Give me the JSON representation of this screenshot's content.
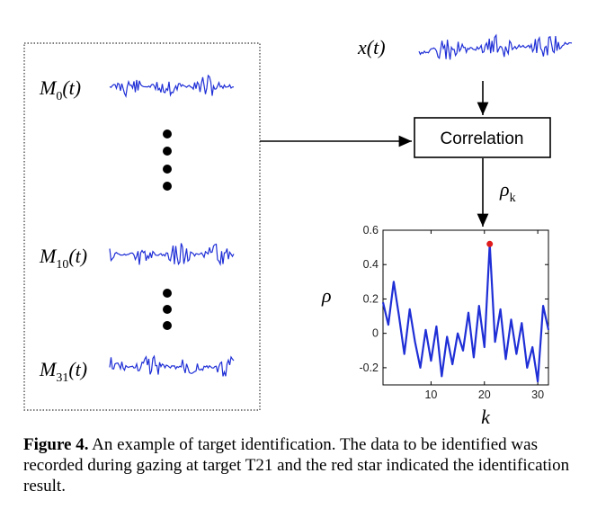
{
  "labels": {
    "x": "x(t)",
    "m0_main": "M",
    "m0_sub": "0",
    "m0_arg": "(t)",
    "m10_main": "M",
    "m10_sub": "10",
    "m10_arg": "(t)",
    "m31_main": "M",
    "m31_sub": "31",
    "m31_arg": "(t)",
    "rho_k_main": "ρ",
    "rho_k_sub": "k",
    "rho_axis": "ρ",
    "k_axis": "k",
    "correlation": "Correlation"
  },
  "caption": {
    "label": "Figure 4.",
    "text": " An example of target identification. The data to be identified was recorded during gazing at target T21 and the red star indicated the identification result."
  },
  "colors": {
    "signal": "#1f2fd6",
    "highlight": "#e01b1b"
  },
  "chart_data": {
    "type": "line",
    "x": [
      1,
      2,
      3,
      4,
      5,
      6,
      7,
      8,
      9,
      10,
      11,
      12,
      13,
      14,
      15,
      16,
      17,
      18,
      19,
      20,
      21,
      22,
      23,
      24,
      25,
      26,
      27,
      28,
      29,
      30,
      31,
      32
    ],
    "series": [
      {
        "values": [
          0.18,
          0.05,
          0.3,
          0.1,
          -0.12,
          0.14,
          -0.05,
          -0.2,
          0.02,
          -0.16,
          0.04,
          -0.25,
          -0.02,
          -0.18,
          0.0,
          -0.1,
          0.12,
          -0.14,
          0.16,
          -0.08,
          0.52,
          -0.05,
          0.14,
          -0.15,
          0.08,
          -0.12,
          0.06,
          -0.2,
          -0.08,
          -0.28,
          0.16,
          0.02
        ]
      }
    ],
    "highlight": {
      "x": 21,
      "y": 0.52
    },
    "xlim": [
      1,
      32
    ],
    "ylim": [
      -0.3,
      0.6
    ],
    "xticks": [
      10,
      20,
      30
    ],
    "yticks": [
      0.6,
      0.4,
      0.2,
      0,
      -0.2
    ],
    "ytick_labels": [
      "0.6",
      "0.4",
      "0.2",
      "0",
      "-0.2"
    ],
    "xlabel": "k",
    "ylabel": "ρ"
  }
}
